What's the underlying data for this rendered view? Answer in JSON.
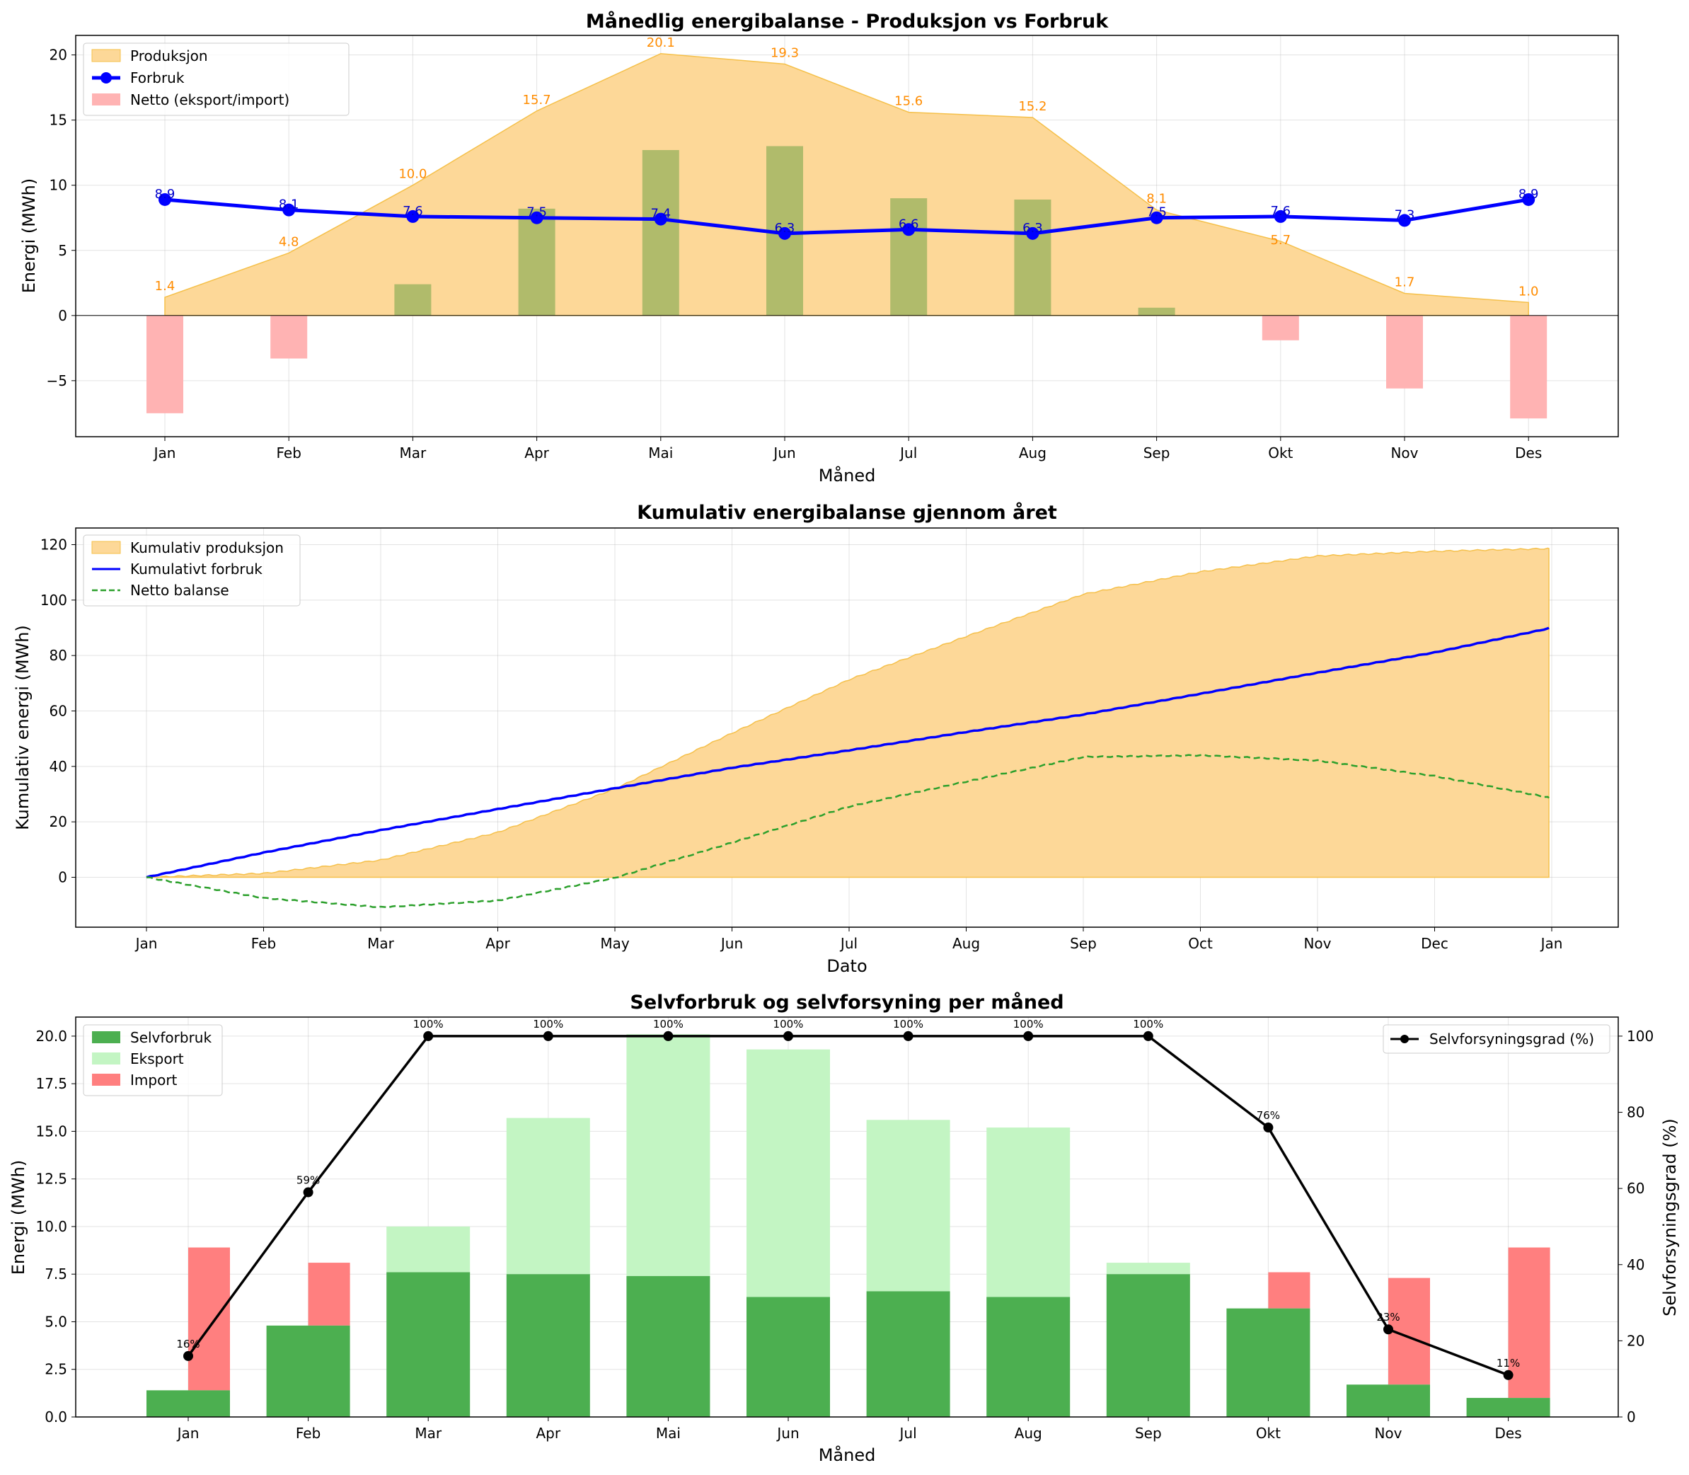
{
  "chart_data": [
    {
      "type": "line",
      "title": "Månedlig energibalanse - Produksjon vs Forbruk",
      "xlabel": "Måned",
      "ylabel": "Energi (MWh)",
      "categories": [
        "Jan",
        "Feb",
        "Mar",
        "Apr",
        "Mai",
        "Jun",
        "Jul",
        "Aug",
        "Sep",
        "Okt",
        "Nov",
        "Des"
      ],
      "ylim": [
        -9.3,
        21.5
      ],
      "yticks": [
        -5,
        0,
        5,
        10,
        15,
        20
      ],
      "legend_position": "top-left",
      "series": [
        {
          "name": "Produksjon",
          "kind": "area",
          "color": "#fdd898",
          "label_color": "#ff8c00",
          "values": [
            1.4,
            4.8,
            10.0,
            15.7,
            20.1,
            19.3,
            15.6,
            15.2,
            8.1,
            5.7,
            1.7,
            1.0
          ]
        },
        {
          "name": "Forbruk",
          "kind": "line",
          "color": "#0000ff",
          "values": [
            8.9,
            8.1,
            7.6,
            7.5,
            7.4,
            6.3,
            6.6,
            6.3,
            7.5,
            7.6,
            7.3,
            8.9
          ]
        },
        {
          "name": "Netto (eksport/import)",
          "kind": "bar",
          "color": "#ffb3b3",
          "color_positive": "#b0bb6b",
          "values": [
            -7.5,
            -3.3,
            2.4,
            8.2,
            12.7,
            13.0,
            9.0,
            8.9,
            0.6,
            -1.9,
            -5.6,
            -7.9
          ]
        }
      ],
      "label_texts": {
        "produksjon": [
          "1.4",
          "4.8",
          "10.0",
          "15.7",
          "20.1",
          "19.3",
          "15.6",
          "15.2",
          "8.1",
          "5.7",
          "1.7",
          "1.0"
        ],
        "forbruk": [
          "8.9",
          "8.1",
          "7.6",
          "7.5",
          "7.4",
          "6.3",
          "6.6",
          "6.3",
          "7.5",
          "7.6",
          "7.3",
          "8.9"
        ]
      }
    },
    {
      "type": "area",
      "title": "Kumulativ energibalanse gjennom året",
      "xlabel": "Dato",
      "ylabel": "Kumulativ energi (MWh)",
      "xticks": [
        "Jan",
        "Feb",
        "Mar",
        "Apr",
        "May",
        "Jun",
        "Jul",
        "Aug",
        "Sep",
        "Oct",
        "Nov",
        "Dec",
        "Jan"
      ],
      "ylim": [
        -18,
        126
      ],
      "yticks": [
        0,
        20,
        40,
        60,
        80,
        100,
        120
      ],
      "legend_position": "top-left",
      "series": [
        {
          "name": "Kumulativ produksjon",
          "kind": "area",
          "color": "#fdd898",
          "month_values": [
            1.4,
            6.2,
            16.2,
            31.9,
            52.0,
            71.3,
            86.9,
            102.1,
            110.2,
            115.9,
            117.6,
            118.6
          ]
        },
        {
          "name": "Kumulativt forbruk",
          "kind": "line",
          "color": "#0000ff",
          "month_values": [
            8.9,
            17.0,
            24.6,
            32.1,
            39.5,
            45.8,
            52.4,
            58.7,
            66.2,
            73.8,
            81.1,
            90.0
          ]
        },
        {
          "name": "Netto balanse",
          "kind": "dashed",
          "color": "#2ca02c",
          "month_values": [
            -7.5,
            -10.8,
            -8.4,
            -0.2,
            12.5,
            25.5,
            34.5,
            43.4,
            44.0,
            42.1,
            36.5,
            28.6
          ]
        }
      ]
    },
    {
      "type": "bar",
      "title": "Selvforbruk og selvforsyning per måned",
      "xlabel": "Måned",
      "ylabel": "Energi (MWh)",
      "y2label": "Selvforsyningsgrad (%)",
      "categories": [
        "Jan",
        "Feb",
        "Mar",
        "Apr",
        "Mai",
        "Jun",
        "Jul",
        "Aug",
        "Sep",
        "Okt",
        "Nov",
        "Des"
      ],
      "ylim": [
        0,
        21.0
      ],
      "yticks": [
        0.0,
        2.5,
        5.0,
        7.5,
        10.0,
        12.5,
        15.0,
        17.5,
        20.0
      ],
      "ytick_labels": [
        "0.0",
        "2.5",
        "5.0",
        "7.5",
        "10.0",
        "12.5",
        "15.0",
        "17.5",
        "20.0"
      ],
      "y2lim": [
        0,
        105
      ],
      "y2ticks": [
        0,
        20,
        40,
        60,
        80,
        100
      ],
      "legend_position": "top-left",
      "legend2_position": "top-right",
      "series": [
        {
          "name": "Selvforbruk",
          "color": "#4caf50",
          "values": [
            1.4,
            4.8,
            7.6,
            7.5,
            7.4,
            6.3,
            6.6,
            6.3,
            7.5,
            5.7,
            1.7,
            1.0
          ]
        },
        {
          "name": "Eksport",
          "color": "#c3f5c3",
          "values": [
            0,
            0,
            2.4,
            8.2,
            12.7,
            13.0,
            9.0,
            8.9,
            0.6,
            0,
            0,
            0
          ]
        },
        {
          "name": "Import",
          "color": "#ff7f7f",
          "values": [
            7.5,
            3.3,
            0,
            0,
            0,
            0,
            0,
            0,
            0,
            1.9,
            5.6,
            7.9
          ]
        },
        {
          "name": "Selvforsyningsgrad (%)",
          "color": "#000000",
          "axis": "right",
          "values": [
            16,
            59,
            100,
            100,
            100,
            100,
            100,
            100,
            100,
            76,
            23,
            11
          ]
        }
      ],
      "pct_labels": [
        "16%",
        "59%",
        "100%",
        "100%",
        "100%",
        "100%",
        "100%",
        "100%",
        "100%",
        "76%",
        "23%",
        "11%"
      ]
    }
  ]
}
